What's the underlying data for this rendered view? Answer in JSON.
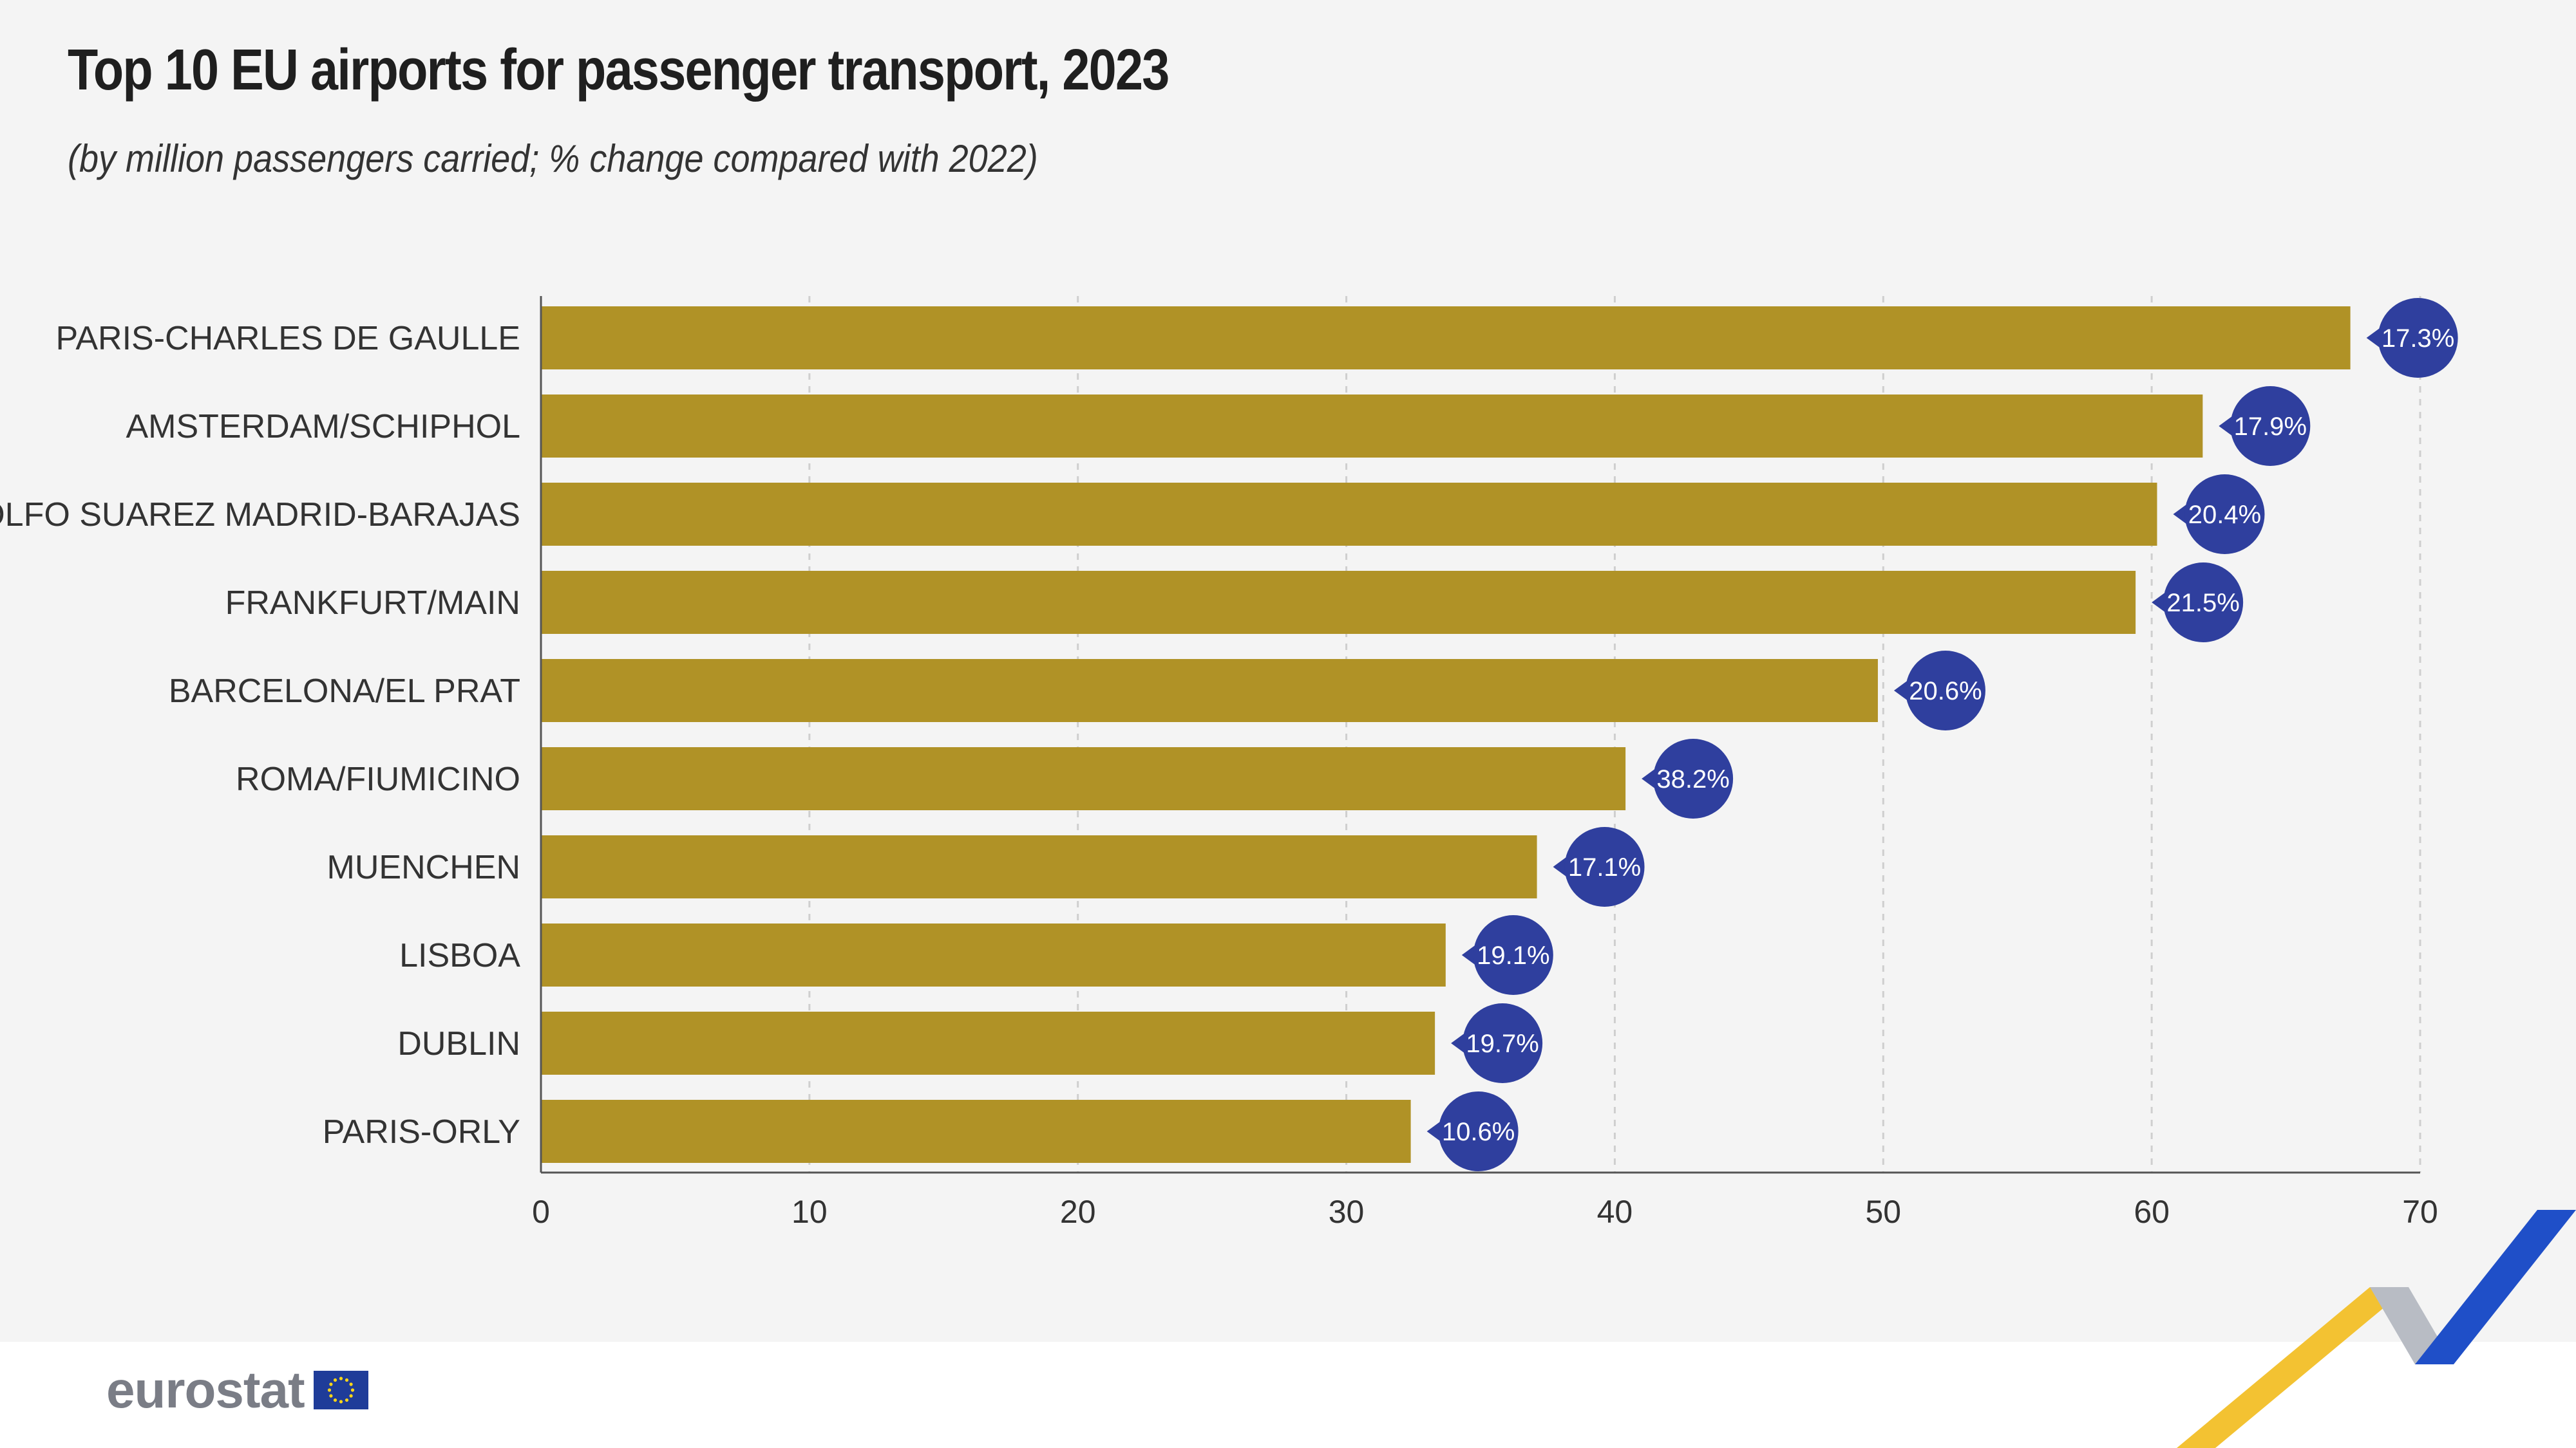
{
  "colors": {
    "background": "#f4f4f4",
    "bar": "#b09226",
    "bubble": "#2f3f9e",
    "axis": "#555555",
    "grid": "#cfcfcf",
    "logo_text": "#7a7d86",
    "eu_flag_blue": "#1f3c99",
    "eu_flag_stars": "#ffd617",
    "accent_yellow": "#f3c232",
    "accent_grey": "#b8bcc4",
    "accent_blue": "#1f4fc8"
  },
  "footer": {
    "logo_text": "eurostat",
    "flag_icon": "eu-flag-icon"
  },
  "chart_data": {
    "type": "bar",
    "orientation": "horizontal",
    "title": "Top 10 EU airports for passenger transport, 2023",
    "subtitle": "(by million passengers carried; % change compared with 2022)",
    "categories": [
      "PARIS-CHARLES DE GAULLE",
      "AMSTERDAM/SCHIPHOL",
      "ADOLFO SUAREZ MADRID-BARAJAS",
      "FRANKFURT/MAIN",
      "BARCELONA/EL PRAT",
      "ROMA/FIUMICINO",
      "MUENCHEN",
      "LISBOA",
      "DUBLIN",
      "PARIS-ORLY"
    ],
    "values": [
      67.4,
      61.9,
      60.2,
      59.4,
      49.8,
      40.4,
      37.1,
      33.7,
      33.3,
      32.4
    ],
    "change_labels": [
      "17.3%",
      "17.9%",
      "20.4%",
      "21.5%",
      "20.6%",
      "38.2%",
      "17.1%",
      "19.1%",
      "19.7%",
      "10.6%"
    ],
    "xlim": [
      0,
      70
    ],
    "xticks": [
      0,
      10,
      20,
      30,
      40,
      50,
      60,
      70
    ],
    "grid": "vertical dashed",
    "xlabel": "",
    "ylabel": ""
  }
}
